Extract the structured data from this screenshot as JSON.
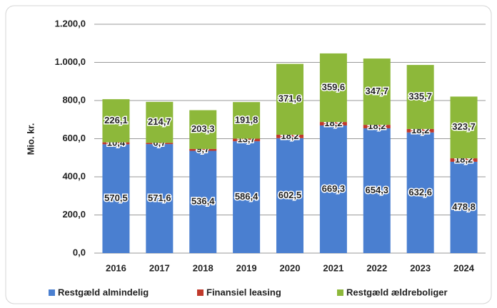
{
  "chart_data": {
    "type": "bar",
    "stacked": true,
    "y_label": "Mio. kr.",
    "categories": [
      "2016",
      "2017",
      "2018",
      "2019",
      "2020",
      "2021",
      "2022",
      "2023",
      "2024"
    ],
    "series": [
      {
        "name": "Restgæld almindelig",
        "color": "#4a7fd0",
        "values": [
          570.5,
          571.6,
          536.4,
          586.4,
          602.5,
          669.3,
          654.3,
          632.6,
          478.8
        ],
        "value_labels": [
          "570,5",
          "571,6",
          "536,4",
          "586,4",
          "602,5",
          "669,3",
          "654,3",
          "632,6",
          "478,8"
        ]
      },
      {
        "name": "Finansiel leasing",
        "color": "#c0392b",
        "values": [
          10.4,
          6.7,
          9.7,
          13.7,
          18.2,
          18.2,
          18.2,
          18.2,
          18.2
        ],
        "value_labels": [
          "10,4",
          "6,7",
          "9,7",
          "13,7",
          "18,2",
          "18,2",
          "18,2",
          "18,2",
          "18,2"
        ]
      },
      {
        "name": "Restgæld ældreboliger",
        "color": "#8db83a",
        "values": [
          226.1,
          214.7,
          203.3,
          191.8,
          371.6,
          359.6,
          347.7,
          335.7,
          323.7
        ],
        "value_labels": [
          "226,1",
          "214,7",
          "203,3",
          "191,8",
          "371,6",
          "359,6",
          "347,7",
          "335,7",
          "323,7"
        ]
      }
    ],
    "ylim": [
      0,
      1200
    ],
    "yticks": [
      {
        "value": 0,
        "label": "0,0"
      },
      {
        "value": 200,
        "label": "200,0"
      },
      {
        "value": 400,
        "label": "400,0"
      },
      {
        "value": 600,
        "label": "600,0"
      },
      {
        "value": 800,
        "label": "800,0"
      },
      {
        "value": 1000,
        "label": "1.000,0"
      },
      {
        "value": 1200,
        "label": "1.200,0"
      }
    ],
    "grid": true,
    "legend": "bottom"
  }
}
